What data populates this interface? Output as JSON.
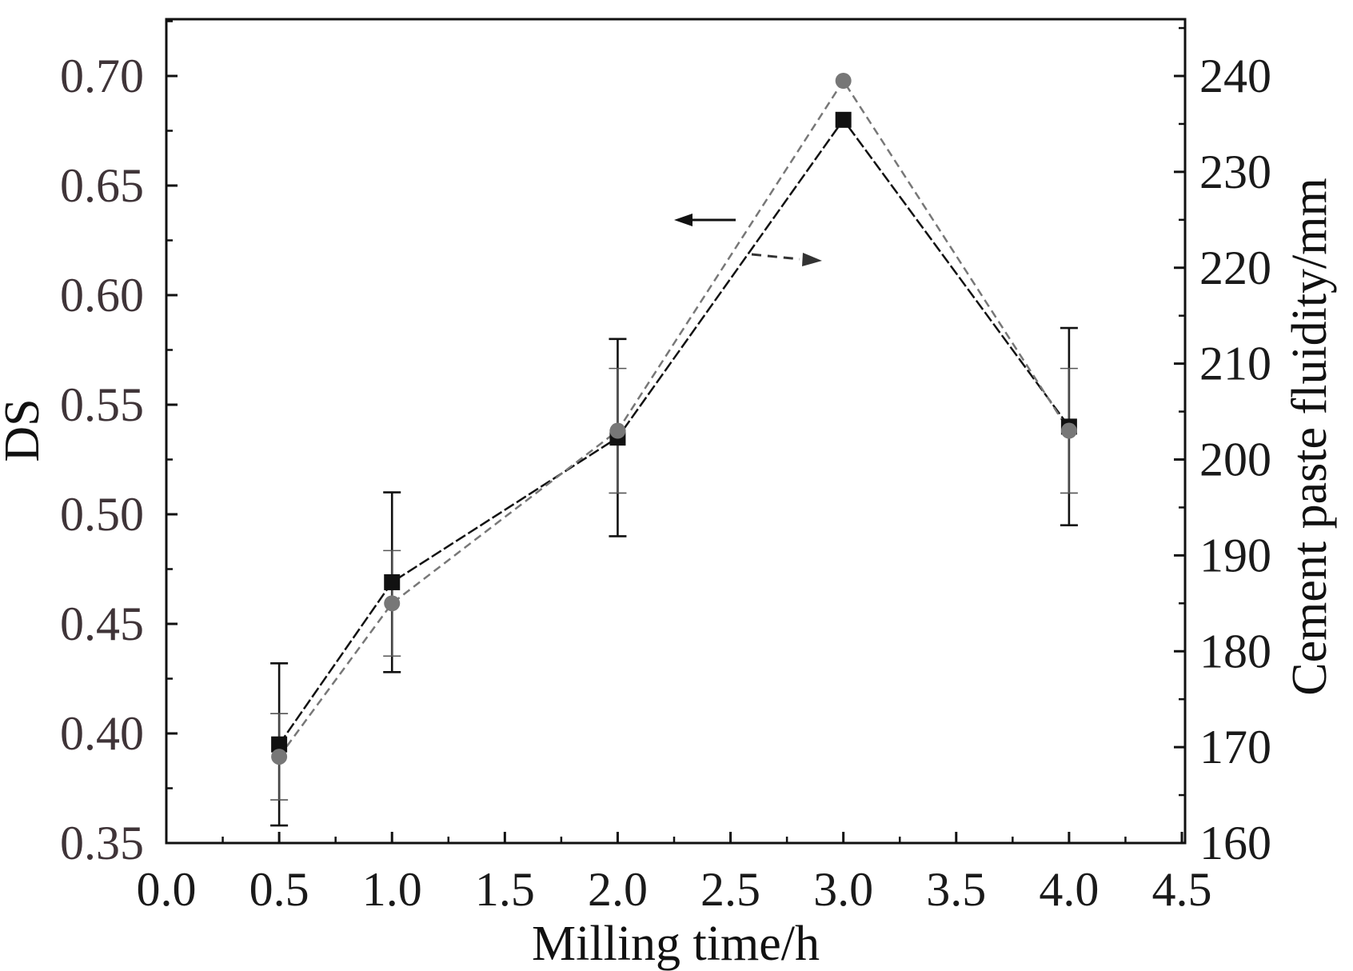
{
  "chart_data": {
    "type": "line",
    "title": "",
    "xlabel": "Milling time/h",
    "ylabel": "DS",
    "y2label": "Cement paste fluidity/mm",
    "xlim": [
      0.0,
      4.5
    ],
    "ylim": [
      0.35,
      0.725
    ],
    "y2lim": [
      160,
      243
    ],
    "x_ticks": [
      "0.0",
      "0.5",
      "1.0",
      "1.5",
      "2.0",
      "2.5",
      "3.0",
      "3.5",
      "4.0",
      "4.5"
    ],
    "y_ticks": [
      "0.35",
      "0.40",
      "0.45",
      "0.50",
      "0.55",
      "0.60",
      "0.65",
      "0.70"
    ],
    "y2_ticks": [
      "160",
      "170",
      "180",
      "190",
      "200",
      "210",
      "220",
      "230",
      "240"
    ],
    "grid": false,
    "legend": "none",
    "series": [
      {
        "axis": "left",
        "marker": "square",
        "color": "#111111",
        "x": [
          0.5,
          1.0,
          2.0,
          3.0,
          4.0
        ],
        "values": [
          0.395,
          0.469,
          0.535,
          0.68,
          0.54
        ],
        "error": [
          0.037,
          0.041,
          0.045,
          0.0,
          0.045
        ]
      },
      {
        "axis": "right",
        "marker": "circle",
        "color": "#777777",
        "x": [
          0.5,
          1.0,
          2.0,
          3.0,
          4.0
        ],
        "values": [
          169,
          185,
          203,
          239.5,
          203
        ],
        "error": [
          4.5,
          5.5,
          6.5,
          0.0,
          6.5
        ]
      }
    ],
    "annotations": [
      {
        "type": "arrow",
        "direction": "left",
        "meaning": "square series uses left axis"
      },
      {
        "type": "arrow",
        "direction": "right",
        "meaning": "circle series uses right axis"
      }
    ]
  }
}
